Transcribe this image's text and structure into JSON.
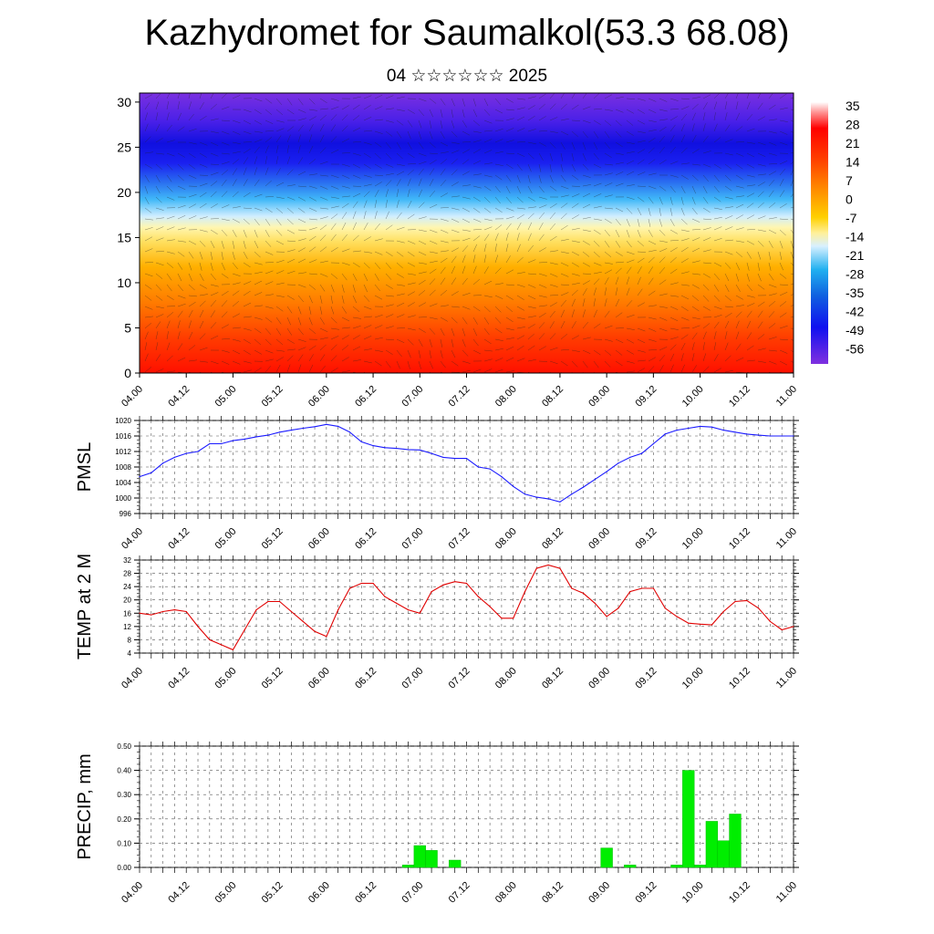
{
  "title": "Kazhydromet for Saumalkol(53.3 68.08)",
  "subtitle": "04 ☆☆☆☆☆☆ 2025",
  "time_labels": [
    "04.00",
    "04.12",
    "05.00",
    "05.12",
    "06.00",
    "06.12",
    "07.00",
    "07.12",
    "08.00",
    "08.12",
    "09.00",
    "09.12",
    "10.00",
    "10.12",
    "11.00"
  ],
  "chart_data": [
    {
      "type": "heatmap",
      "name_hint": "cross-section",
      "xlabel": "",
      "ylabel": "",
      "y_ticks": [
        0,
        5,
        10,
        15,
        20,
        25,
        30
      ],
      "ylim": [
        0,
        31
      ],
      "xlim": [
        0,
        168
      ],
      "colorbar_labels": [
        "35",
        "28",
        "21",
        "14",
        "7",
        "0",
        "-7",
        "-14",
        "-21",
        "-28",
        "-35",
        "-42",
        "-49",
        "-56"
      ],
      "colors": {
        "warm": "#ff1a00",
        "mid": "#fff4a0",
        "cold": "#2020e0",
        "top": "#7a30e0"
      },
      "grid": false
    },
    {
      "type": "line",
      "ylabel": "PMSL",
      "ylim": [
        996,
        1020
      ],
      "y_ticks": [
        "996",
        "1000",
        "1004",
        "1008",
        "1012",
        "1016",
        "1020"
      ],
      "color": "#1a1aff",
      "x": [
        0,
        3,
        6,
        9,
        12,
        15,
        18,
        21,
        24,
        27,
        30,
        33,
        36,
        39,
        42,
        45,
        48,
        51,
        54,
        57,
        60,
        63,
        66,
        69,
        72,
        75,
        78,
        81,
        84,
        87,
        90,
        93,
        96,
        99,
        102,
        105,
        108,
        111,
        114,
        117,
        120,
        123,
        126,
        129,
        132,
        135,
        138,
        141,
        144,
        147,
        150,
        153,
        156,
        159,
        162,
        165,
        168
      ],
      "values": [
        1005.5,
        1006.5,
        1009,
        1010.5,
        1011.5,
        1012,
        1014,
        1014,
        1014.8,
        1015.2,
        1015.8,
        1016.2,
        1017,
        1017.5,
        1018,
        1018.4,
        1019,
        1018.5,
        1017,
        1014.5,
        1013.5,
        1013,
        1012.8,
        1012.5,
        1012.4,
        1011.5,
        1010.5,
        1010.2,
        1010.2,
        1008,
        1007.5,
        1005.5,
        1003,
        1001,
        1000.2,
        999.8,
        999,
        1001,
        1002.8,
        1004.8,
        1006.8,
        1009,
        1010.5,
        1011.5,
        1014,
        1016.5,
        1017.5,
        1018,
        1018.5,
        1018.3,
        1017.5,
        1017,
        1016.5,
        1016.2,
        1016,
        1016,
        1016
      ]
    },
    {
      "type": "line",
      "ylabel": "TEMP at 2 M",
      "ylim": [
        4,
        32
      ],
      "y_ticks": [
        "4",
        "8",
        "12",
        "16",
        "20",
        "24",
        "28",
        "32"
      ],
      "color": "#e00000",
      "x": [
        0,
        3,
        6,
        9,
        12,
        15,
        18,
        21,
        24,
        27,
        30,
        33,
        36,
        39,
        42,
        45,
        48,
        51,
        54,
        57,
        60,
        63,
        66,
        69,
        72,
        75,
        78,
        81,
        84,
        87,
        90,
        93,
        96,
        99,
        102,
        105,
        108,
        111,
        114,
        117,
        120,
        123,
        126,
        129,
        132,
        135,
        138,
        141,
        144,
        147,
        150,
        153,
        156,
        159,
        162,
        165,
        168
      ],
      "values": [
        16,
        15.5,
        16.5,
        17,
        16.5,
        12,
        8,
        6.5,
        5,
        11,
        17,
        19.5,
        19.5,
        16.5,
        13.5,
        10.5,
        9,
        17,
        23.5,
        25,
        25,
        21,
        19,
        17,
        16,
        22.5,
        24.5,
        25.5,
        25,
        21,
        18,
        14.5,
        14.5,
        22.5,
        29.5,
        30.5,
        29.5,
        23.5,
        22,
        19,
        15,
        17.5,
        22.5,
        23.5,
        23.5,
        17.5,
        15,
        13,
        12.7,
        12.5,
        16.5,
        19.5,
        19.8,
        17.5,
        13.5,
        11,
        12
      ]
    },
    {
      "type": "bar",
      "ylabel": "PRECIP, mm",
      "ylim": [
        0,
        0.5
      ],
      "y_ticks": [
        "0.00",
        "0.10",
        "0.20",
        "0.30",
        "0.40",
        "0.50"
      ],
      "color": "#00ee00",
      "x": [
        69,
        72,
        75,
        81,
        120,
        126,
        138,
        141,
        144,
        147,
        150,
        153
      ],
      "values": [
        0.01,
        0.09,
        0.07,
        0.03,
        0.08,
        0.01,
        0.01,
        0.4,
        0.01,
        0.19,
        0.11,
        0.22
      ]
    }
  ]
}
